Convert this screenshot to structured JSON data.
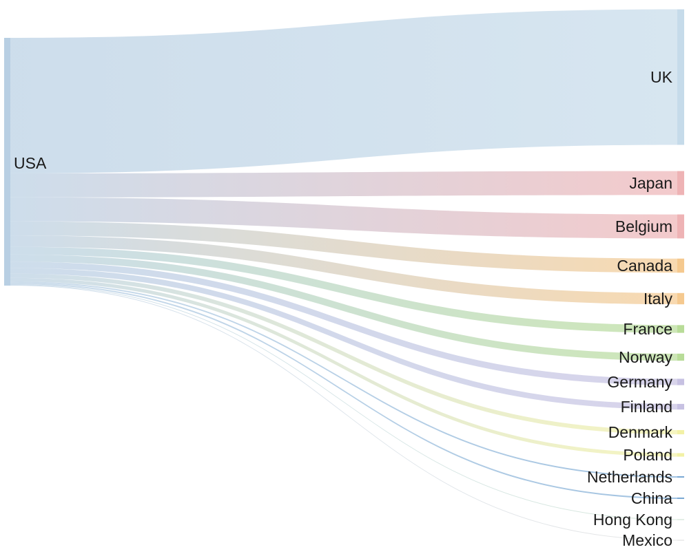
{
  "chart_data": {
    "type": "sankey",
    "source": {
      "name": "USA",
      "color": "#b8cfe3"
    },
    "links": [
      {
        "target": "UK",
        "value": 192,
        "color": "#c6dbea"
      },
      {
        "target": "Japan",
        "value": 34,
        "color": "#eeb3b5"
      },
      {
        "target": "Belgium",
        "value": 34,
        "color": "#eeb3b5"
      },
      {
        "target": "Canada",
        "value": 20,
        "color": "#f5c98f"
      },
      {
        "target": "Italy",
        "value": 16,
        "color": "#f5c98f"
      },
      {
        "target": "France",
        "value": 11,
        "color": "#b8dc98"
      },
      {
        "target": "Norway",
        "value": 10,
        "color": "#b8dc98"
      },
      {
        "target": "Germany",
        "value": 9,
        "color": "#c7c1e2"
      },
      {
        "target": "Finland",
        "value": 8,
        "color": "#c7c1e2"
      },
      {
        "target": "Denmark",
        "value": 6,
        "color": "#f2f1a6"
      },
      {
        "target": "Poland",
        "value": 5,
        "color": "#f2f1a6"
      },
      {
        "target": "Netherlands",
        "value": 2,
        "color": "#7aa9d4"
      },
      {
        "target": "China",
        "value": 2,
        "color": "#7aa9d4"
      },
      {
        "target": "Hong Kong",
        "value": 1,
        "color": "#c8dfcf"
      },
      {
        "target": "Mexico",
        "value": 1,
        "color": "#dcdcdc"
      }
    ]
  }
}
